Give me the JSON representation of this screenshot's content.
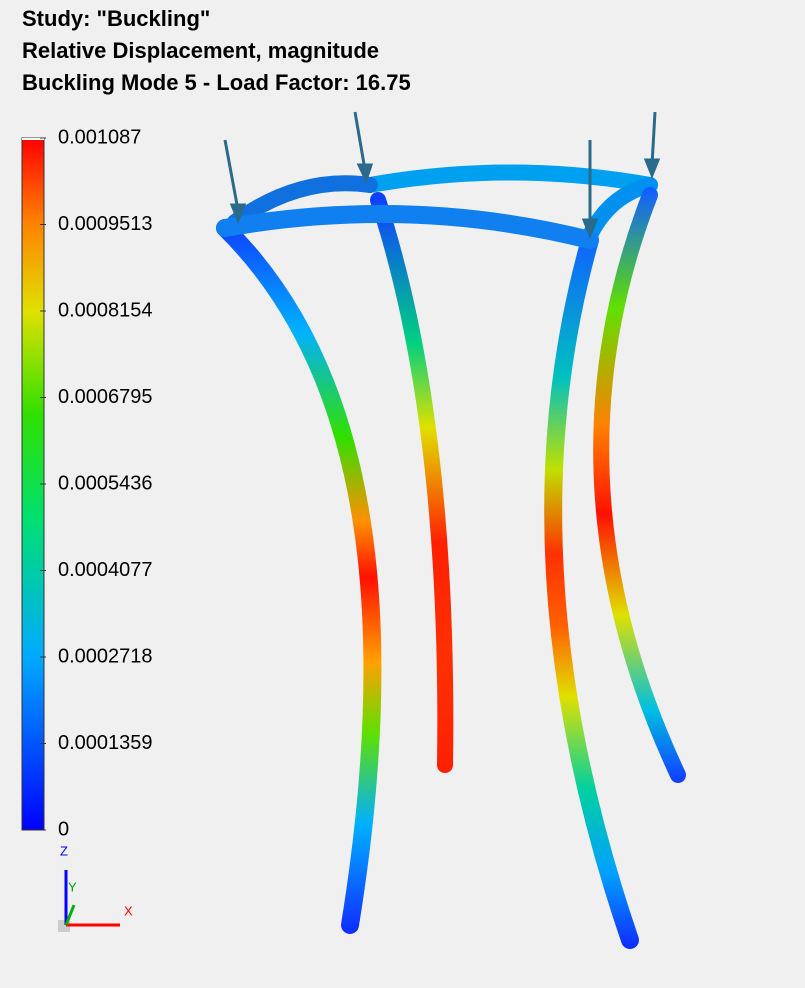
{
  "header": {
    "lines": [
      "Study: \"Buckling\"",
      "Relative Displacement, magnitude",
      "Buckling Mode 5 - Load Factor: 16.75"
    ]
  },
  "legend": {
    "labels": [
      "0.001087",
      "0.0009513",
      "0.0008154",
      "0.0006795",
      "0.0005436",
      "0.0004077",
      "0.0002718",
      "0.0001359",
      "0"
    ]
  },
  "triad": {
    "axes": [
      "Z",
      "Y",
      "X"
    ]
  }
}
